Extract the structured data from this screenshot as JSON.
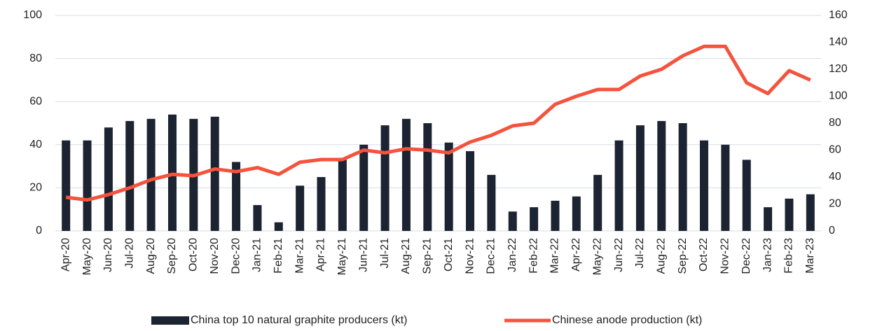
{
  "chart_data": {
    "type": "bar_line",
    "categories": [
      "Apr-20",
      "May-20",
      "Jun-20",
      "Jul-20",
      "Aug-20",
      "Sep-20",
      "Oct-20",
      "Nov-20",
      "Dec-20",
      "Jan-21",
      "Feb-21",
      "Mar-21",
      "Apr-21",
      "May-21",
      "Jun-21",
      "Jul-21",
      "Aug-21",
      "Sep-21",
      "Oct-21",
      "Nov-21",
      "Dec-21",
      "Jan-22",
      "Feb-22",
      "Mar-22",
      "Apr-22",
      "May-22",
      "Jun-22",
      "Jul-22",
      "Aug-22",
      "Sep-22",
      "Oct-22",
      "Nov-22",
      "Dec-22",
      "Jan-23",
      "Feb-23",
      "Mar-23"
    ],
    "series": [
      {
        "name": "China top 10 natural graphite producers (kt)",
        "type": "bar",
        "color": "#1c2331",
        "axis": "y",
        "values": [
          42,
          42,
          48,
          51,
          52,
          54,
          52,
          53,
          32,
          12,
          4,
          21,
          25,
          33,
          40,
          49,
          52,
          50,
          41,
          37,
          26,
          9,
          11,
          14,
          16,
          26,
          42,
          49,
          51,
          50,
          42,
          40,
          33,
          11,
          15,
          17
        ]
      },
      {
        "name": "Chinese anode production (kt)",
        "type": "line",
        "color": "#f4533d",
        "axis": "y2",
        "values": [
          25,
          23,
          27,
          32,
          38,
          42,
          41,
          46,
          44,
          47,
          42,
          51,
          53,
          53,
          60,
          58,
          61,
          60,
          58,
          66,
          71,
          78,
          80,
          94,
          100,
          105,
          105,
          115,
          120,
          130,
          137,
          137,
          110,
          102,
          119,
          112
        ]
      }
    ],
    "ylim": [
      0,
      100
    ],
    "yticks": [
      0,
      20,
      40,
      60,
      80,
      100
    ],
    "y2lim": [
      0,
      160
    ],
    "y2ticks": [
      0,
      20,
      40,
      60,
      80,
      100,
      120,
      140,
      160
    ],
    "grid": true,
    "legend": "bottom"
  }
}
